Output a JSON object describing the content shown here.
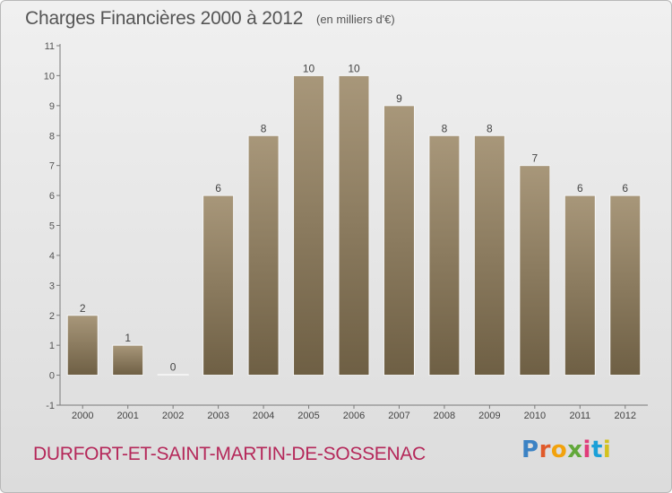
{
  "header": {
    "title": "Charges Financières 2000 à 2012",
    "unit": "(en milliers d'€)"
  },
  "footer": {
    "commune": "DURFORT-ET-SAINT-MARTIN-DE-SOSSENAC",
    "logo_text": "Proxiti",
    "logo_colors": [
      "#3b82c4",
      "#e05a2a",
      "#f2a20c",
      "#62a83a",
      "#e03c7a",
      "#1aa0d8",
      "#d3c21e"
    ]
  },
  "chart_data": {
    "type": "bar",
    "categories": [
      "2000",
      "2001",
      "2002",
      "2003",
      "2004",
      "2005",
      "2006",
      "2007",
      "2008",
      "2009",
      "2010",
      "2011",
      "2012"
    ],
    "values": [
      2,
      1,
      0,
      6,
      8,
      10,
      10,
      9,
      8,
      8,
      7,
      6,
      6
    ],
    "data_labels": [
      "2",
      "1",
      "0",
      "6",
      "8",
      "10",
      "10",
      "9",
      "8",
      "8",
      "7",
      "6",
      "6"
    ],
    "y_ticks": [
      "-1",
      "0",
      "1",
      "2",
      "3",
      "4",
      "5",
      "6",
      "7",
      "8",
      "9",
      "10",
      "11"
    ],
    "ylim": [
      -1,
      11
    ],
    "grid": false,
    "bar_color": "#8c7a5c"
  }
}
